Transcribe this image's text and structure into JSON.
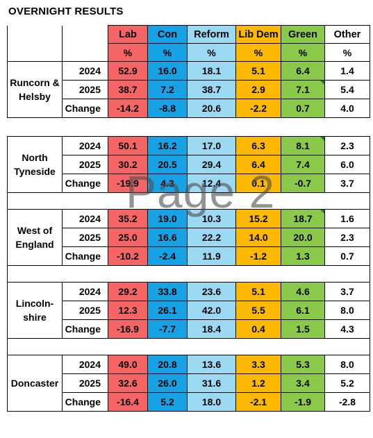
{
  "title": "OVERNIGHT RESULTS",
  "watermark": "Page 2",
  "headers": {
    "parties": [
      "Lab",
      "Con",
      "Reform",
      "Lib Dem",
      "Green",
      "Other"
    ],
    "unit": "%"
  },
  "colors": {
    "lab": "#f56565",
    "con": "#16a2e5",
    "reform": "#9bd8f2",
    "libdem": "#fdb900",
    "green": "#8ac94a",
    "other": "#ffffff",
    "note_marker": "#1d7a3a"
  },
  "row_labels": [
    "2024",
    "2025",
    "Change"
  ],
  "areas": [
    {
      "name_lines": [
        "Runcorn &",
        "Helsby"
      ],
      "rows": [
        [
          "52.9",
          "16.0",
          "18.1",
          "5.1",
          "6.4",
          "1.4"
        ],
        [
          "38.7",
          "7.2",
          "38.7",
          "2.9",
          "7.1",
          "5.4"
        ],
        [
          "-14.2",
          "-8.8",
          "20.6",
          "-2.2",
          "0.7",
          "4.0"
        ]
      ]
    },
    {
      "name_lines": [
        "North",
        "Tyneside"
      ],
      "rows": [
        [
          "50.1",
          "16.2",
          "17.0",
          "6.3",
          "8.1",
          "2.3"
        ],
        [
          "30.2",
          "20.5",
          "29.4",
          "6.4",
          "7.4",
          "6.0"
        ],
        [
          "-19.9",
          "4.3",
          "12.4",
          "0.1",
          "-0.7",
          "3.7"
        ]
      ]
    },
    {
      "name_lines": [
        "West of",
        "England"
      ],
      "rows": [
        [
          "35.2",
          "19.0",
          "10.3",
          "15.2",
          "18.7",
          "1.6"
        ],
        [
          "25.0",
          "16.6",
          "22.2",
          "14.0",
          "20.0",
          "2.3"
        ],
        [
          "-10.2",
          "-2.4",
          "11.9",
          "-1.2",
          "1.3",
          "0.7"
        ]
      ]
    },
    {
      "name_lines": [
        "Lincoln-",
        "shire"
      ],
      "rows": [
        [
          "29.2",
          "33.8",
          "23.6",
          "5.1",
          "4.6",
          "3.7"
        ],
        [
          "12.3",
          "26.1",
          "42.0",
          "5.5",
          "6.1",
          "8.0"
        ],
        [
          "-16.9",
          "-7.7",
          "18.4",
          "0.4",
          "1.5",
          "4.3"
        ]
      ]
    },
    {
      "name_lines": [
        "Doncaster"
      ],
      "rows": [
        [
          "49.0",
          "20.8",
          "13.6",
          "3.3",
          "5.3",
          "8.0"
        ],
        [
          "32.6",
          "26.0",
          "31.6",
          "1.2",
          "3.4",
          "5.2"
        ],
        [
          "-16.4",
          "5.2",
          "18.0",
          "-2.1",
          "-1.9",
          "-2.8"
        ]
      ]
    }
  ]
}
